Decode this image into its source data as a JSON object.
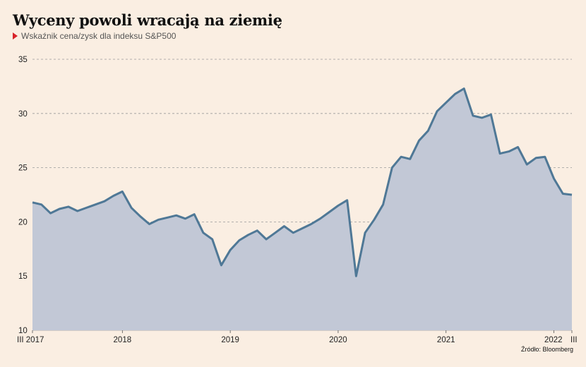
{
  "title": "Wyceny powoli wracają na ziemię",
  "subtitle": "Wskaźnik cena/zysk dla indeksu S&P500",
  "source": "Źródło: Bloomberg",
  "colors": {
    "background": "#faeee2",
    "area": "#c2c8d6",
    "line": "#4f7896",
    "marker": "#d8232a",
    "grid": "#9a9a9a"
  },
  "chart_data": {
    "type": "area",
    "ylim": [
      10,
      35
    ],
    "yticks": [
      "10",
      "15",
      "20",
      "25",
      "30",
      "35"
    ],
    "xticks": [
      {
        "label": "III 2017",
        "x": "2017-03"
      },
      {
        "label": "2018",
        "x": "2018-01"
      },
      {
        "label": "2019",
        "x": "2019-01"
      },
      {
        "label": "2020",
        "x": "2020-01"
      },
      {
        "label": "2021",
        "x": "2021-01"
      },
      {
        "label": "2022",
        "x": "2022-01"
      },
      {
        "label": "III",
        "x": "2022-03"
      }
    ],
    "grid": true,
    "series": [
      {
        "x": [
          "2017-03",
          "2017-04",
          "2017-05",
          "2017-06",
          "2017-07",
          "2017-08",
          "2017-09",
          "2017-10",
          "2017-11",
          "2017-12",
          "2018-01",
          "2018-02",
          "2018-03",
          "2018-04",
          "2018-05",
          "2018-06",
          "2018-07",
          "2018-08",
          "2018-09",
          "2018-10",
          "2018-11",
          "2018-12",
          "2019-01",
          "2019-02",
          "2019-03",
          "2019-04",
          "2019-05",
          "2019-06",
          "2019-07",
          "2019-08",
          "2019-09",
          "2019-10",
          "2019-11",
          "2019-12",
          "2020-01",
          "2020-02",
          "2020-03",
          "2020-04",
          "2020-05",
          "2020-06",
          "2020-07",
          "2020-08",
          "2020-09",
          "2020-10",
          "2020-11",
          "2020-12",
          "2021-01",
          "2021-02",
          "2021-03",
          "2021-04",
          "2021-05",
          "2021-06",
          "2021-07",
          "2021-08",
          "2021-09",
          "2021-10",
          "2021-11",
          "2021-12",
          "2022-01",
          "2022-02",
          "2022-03"
        ],
        "values": [
          21.8,
          21.6,
          20.8,
          21.2,
          21.4,
          21.0,
          21.3,
          21.6,
          21.9,
          22.4,
          22.8,
          21.3,
          20.5,
          19.8,
          20.2,
          20.4,
          20.6,
          20.3,
          20.7,
          19.0,
          18.4,
          16.0,
          17.4,
          18.3,
          18.8,
          19.2,
          18.4,
          19.0,
          19.6,
          19.0,
          19.4,
          19.8,
          20.3,
          20.9,
          21.5,
          22.0,
          15.0,
          19.0,
          20.2,
          21.6,
          25.0,
          26.0,
          25.8,
          27.5,
          28.4,
          30.2,
          31.0,
          31.8,
          32.3,
          29.8,
          29.6,
          29.9,
          26.3,
          26.5,
          26.9,
          25.3,
          25.9,
          26.0,
          24.0,
          22.6,
          22.5
        ]
      }
    ]
  }
}
